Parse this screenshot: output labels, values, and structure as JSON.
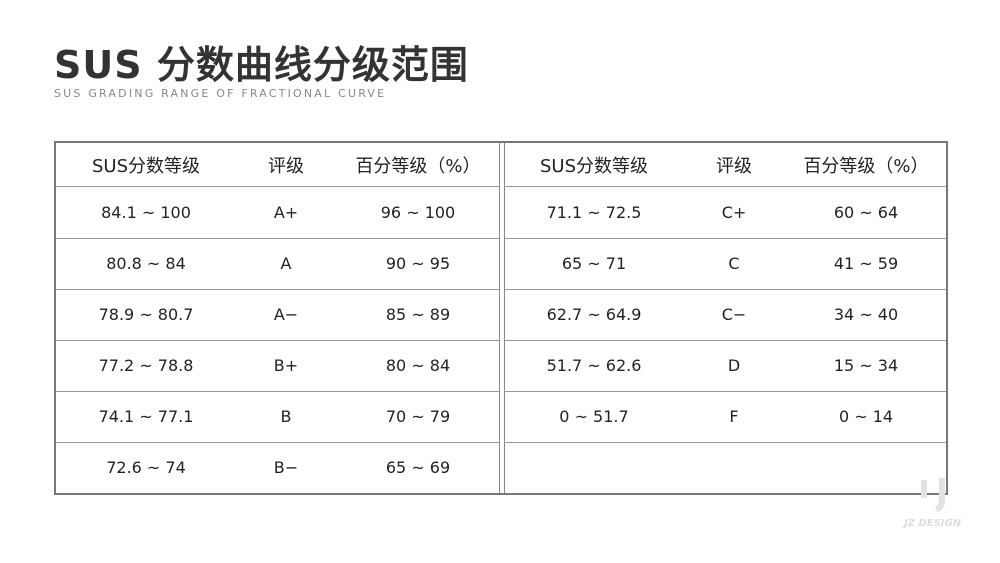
{
  "title": "SUS 分数曲线分级范围",
  "subtitle": "SUS GRADING RANGE OF FRACTIONAL CURVE",
  "table": {
    "headers": [
      "SUS分数等级",
      "评级",
      "百分等级（%）"
    ],
    "left_rows": [
      [
        "84.1 ~ 100",
        "A+",
        "96 ~ 100"
      ],
      [
        "80.8 ~ 84",
        "A",
        "90 ~ 95"
      ],
      [
        "78.9 ~ 80.7",
        "A−",
        "85 ~ 89"
      ],
      [
        "77.2 ~ 78.8",
        "B+",
        "80 ~ 84"
      ],
      [
        "74.1 ~ 77.1",
        "B",
        "70 ~ 79"
      ],
      [
        "72.6 ~ 74",
        "B−",
        "65 ~ 69"
      ]
    ],
    "right_rows": [
      [
        "71.1 ~ 72.5",
        "C+",
        "60 ~ 64"
      ],
      [
        "65 ~ 71",
        "C",
        "41 ~ 59"
      ],
      [
        "62.7 ~ 64.9",
        "C−",
        "34 ~ 40"
      ],
      [
        "51.7 ~ 62.6",
        "D",
        "15 ~ 34"
      ],
      [
        "0 ~ 51.7",
        "F",
        "0 ~ 14"
      ],
      [
        "",
        "",
        ""
      ]
    ]
  },
  "watermark": "JZ DESIGN",
  "colors": {
    "title": "#333333",
    "border": "#777777",
    "watermark": "#dddddd"
  }
}
